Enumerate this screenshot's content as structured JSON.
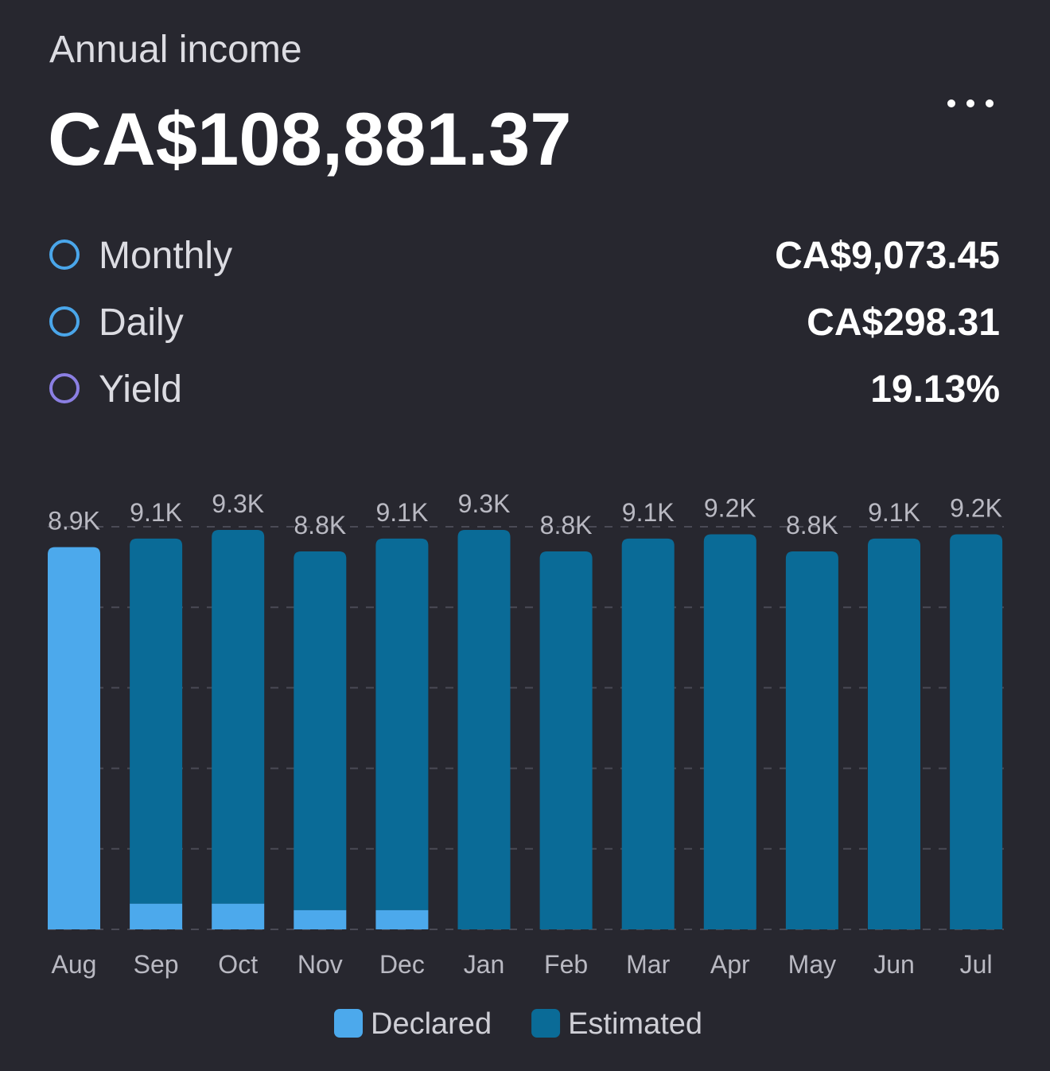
{
  "header": {
    "title": "Annual income",
    "amount": "CA$108,881.37"
  },
  "stats": [
    {
      "label": "Monthly",
      "value": "CA$9,073.45",
      "color": "#4aa6ea"
    },
    {
      "label": "Daily",
      "value": "CA$298.31",
      "color": "#4aa6ea"
    },
    {
      "label": "Yield",
      "value": "19.13%",
      "color": "#8b7fe3"
    }
  ],
  "chart_data": {
    "type": "stacked-bar",
    "categories": [
      "Aug",
      "Sep",
      "Oct",
      "Nov",
      "Dec",
      "Jan",
      "Feb",
      "Mar",
      "Apr",
      "May",
      "Jun",
      "Jul"
    ],
    "series": [
      {
        "name": "Declared",
        "color": "#4ca9ec",
        "values": [
          8900,
          600,
          600,
          450,
          450,
          0,
          0,
          0,
          0,
          0,
          0,
          0
        ]
      },
      {
        "name": "Estimated",
        "color": "#0a6b97",
        "values": [
          0,
          8500,
          8700,
          8350,
          8650,
          9300,
          8800,
          9100,
          9200,
          8800,
          9100,
          9200
        ]
      }
    ],
    "totals": [
      8900,
      9100,
      9300,
      8800,
      9100,
      9300,
      8800,
      9100,
      9200,
      8800,
      9100,
      9200
    ],
    "total_labels": [
      "8.9K",
      "9.1K",
      "9.3K",
      "8.8K",
      "9.1K",
      "9.3K",
      "8.8K",
      "9.1K",
      "9.2K",
      "8.8K",
      "9.1K",
      "9.2K"
    ],
    "ylim": [
      0,
      9375
    ],
    "yticks": [
      0,
      1875,
      3750,
      5625,
      7500,
      9375
    ],
    "grid": true
  }
}
